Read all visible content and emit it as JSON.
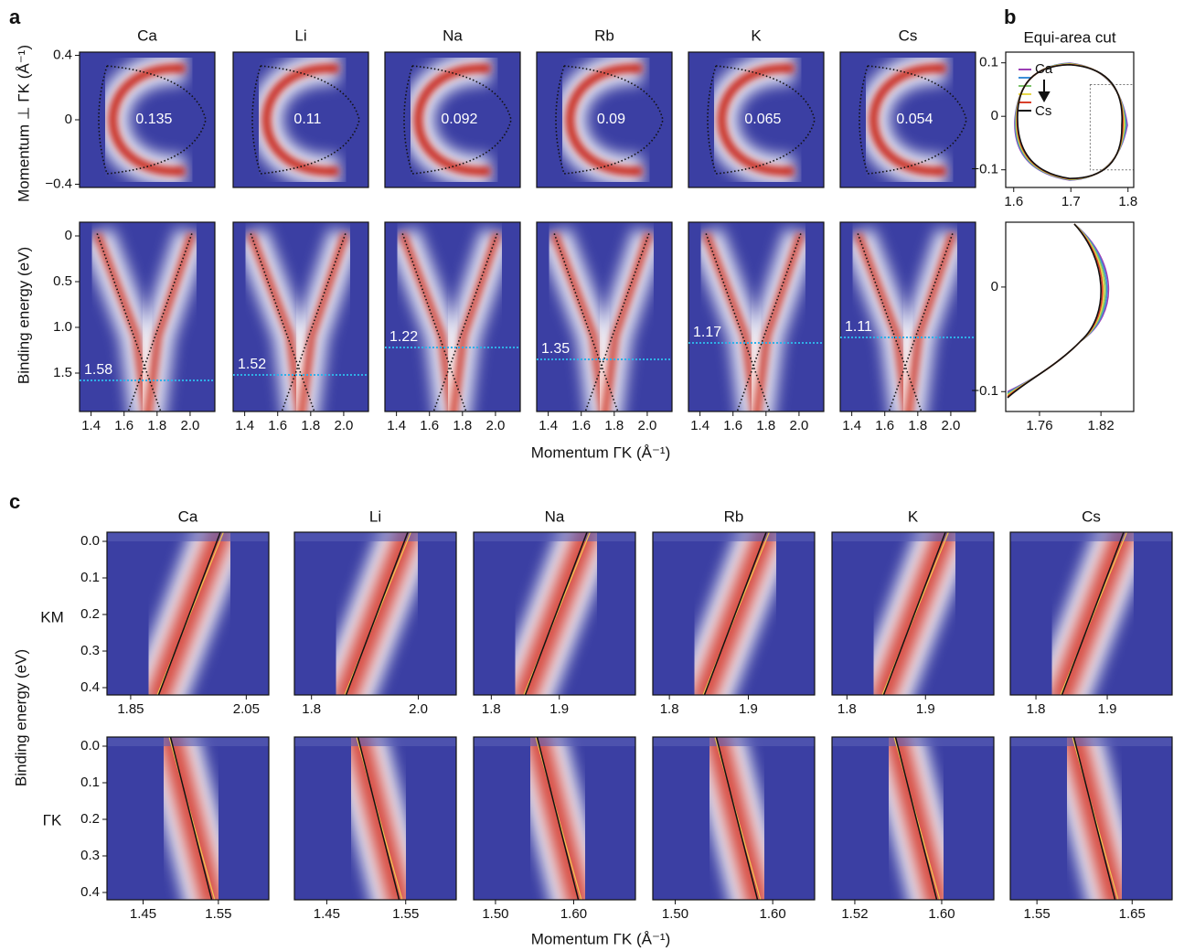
{
  "panel_a": {
    "label": "a",
    "materials": [
      "Ca",
      "Li",
      "Na",
      "Rb",
      "K",
      "Cs"
    ],
    "areas": [
      0.135,
      0.11,
      0.092,
      0.09,
      0.065,
      0.054
    ],
    "top_ylabel": "Momentum ⊥ ΓK (Å⁻¹)",
    "top_ylim": [
      -0.42,
      0.42
    ],
    "top_yticks": [
      0.4,
      0,
      {
        "value": -0.4,
        "label": "−0.4"
      }
    ],
    "bottom_ylabel": "Binding energy (eV)",
    "bottom_ylim": [
      1.92,
      -0.15
    ],
    "bottom_yticks": [
      0,
      0.5,
      {
        "value": 1,
        "label": "1.0"
      },
      1.5
    ],
    "dirac_energies": [
      1.58,
      1.52,
      1.22,
      1.35,
      1.17,
      1.11
    ],
    "xlim": [
      1.33,
      2.15
    ],
    "xticks": [
      1.4,
      1.6,
      1.8,
      {
        "value": 2,
        "label": "2.0"
      }
    ],
    "xlabel": "Momentum  ΓK (Å⁻¹)"
  },
  "panel_b": {
    "label": "b",
    "title": "Equi-area cut",
    "legend": [
      "Ca",
      "Cs"
    ],
    "colors": [
      "#9b3fb5",
      "#3a8fd8",
      "#7cc36a",
      "#e8d84a",
      "#d8402a",
      "#111111"
    ],
    "top_xlim": [
      1.586,
      1.81
    ],
    "top_xticks": [
      1.6,
      1.7,
      1.8
    ],
    "top_ylim": [
      -0.133,
      0.12
    ],
    "top_yticks": [
      0.1,
      0,
      {
        "value": -0.1,
        "label": "−0.1"
      }
    ],
    "bottom_xlim": [
      1.727,
      1.852
    ],
    "bottom_xticks": [
      1.76,
      1.82
    ],
    "bottom_ylim": [
      -0.119,
      0.062
    ],
    "bottom_yticks": [
      0,
      {
        "value": -0.1,
        "label": "−0.1"
      }
    ]
  },
  "panel_c": {
    "label": "c",
    "materials": [
      "Ca",
      "Li",
      "Na",
      "Rb",
      "K",
      "Cs"
    ],
    "row_labels": [
      "KM",
      "ΓK"
    ],
    "ylabel": "Binding energy (eV)",
    "ylim": [
      0.42,
      -0.025
    ],
    "yticks": [
      {
        "value": 0,
        "label": "0.0"
      },
      0.1,
      0.2,
      0.3,
      0.4
    ],
    "top_xlims": [
      [
        1.809,
        2.089
      ],
      [
        1.768,
        2.071
      ],
      [
        1.774,
        2.012
      ],
      [
        1.779,
        1.984
      ],
      [
        1.781,
        1.987
      ],
      [
        1.764,
        1.991
      ]
    ],
    "top_xticks": [
      [
        1.85,
        2.05
      ],
      [
        1.8,
        {
          "value": 2,
          "label": "2.0"
        }
      ],
      [
        1.8,
        1.9
      ],
      [
        1.8,
        1.9
      ],
      [
        1.8,
        1.9
      ],
      [
        1.8,
        1.9
      ]
    ],
    "bottom_xlims": [
      [
        1.402,
        1.617
      ],
      [
        1.409,
        1.614
      ],
      [
        1.472,
        1.679
      ],
      [
        1.477,
        1.643
      ],
      [
        1.499,
        1.648
      ],
      [
        1.522,
        1.692
      ]
    ],
    "bottom_xticks": [
      [
        1.45,
        1.55
      ],
      [
        1.45,
        1.55
      ],
      [
        {
          "value": 1.5,
          "label": "1.50"
        },
        {
          "value": 1.6,
          "label": "1.60"
        }
      ],
      [
        {
          "value": 1.5,
          "label": "1.50"
        },
        {
          "value": 1.6,
          "label": "1.60"
        }
      ],
      [
        1.52,
        {
          "value": 1.6,
          "label": "1.60"
        }
      ],
      [
        1.55,
        1.65
      ]
    ],
    "xlabel": "Momentum  ΓK (Å⁻¹)"
  }
}
